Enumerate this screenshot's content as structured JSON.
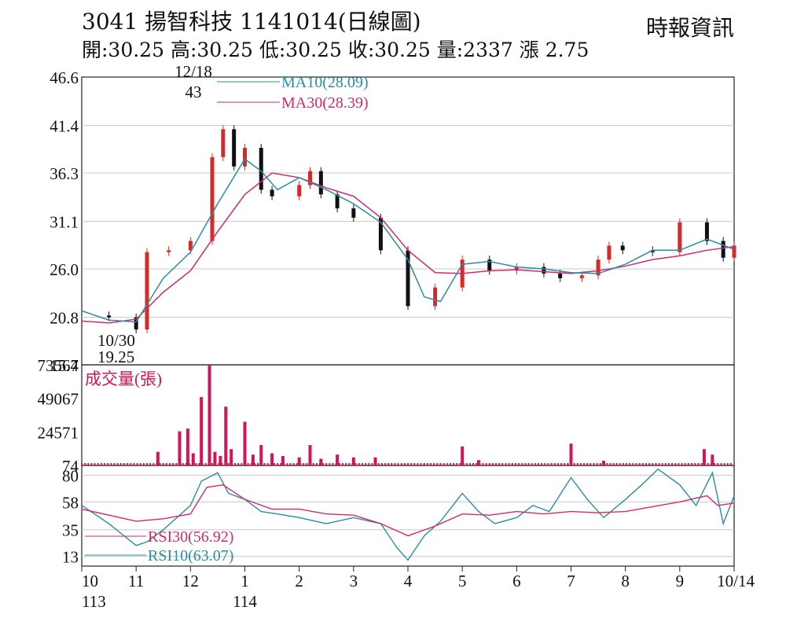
{
  "header": {
    "title": "3041  揚智科技 1141014(日線圖)",
    "stats": "開:30.25 高:30.25 低:30.25 收:30.25 量:2337 漲 2.75",
    "source": "時報資訊"
  },
  "colors": {
    "ma10": "#2a8ca8",
    "ma30": "#d42a6a",
    "up": "#d42a2a",
    "down": "#111111",
    "volume": "#d4145a",
    "grid": "#c8c8c8"
  },
  "chart_data": [
    {
      "type": "candlestick",
      "title": "3041  揚智科技 1141014(日線圖)",
      "y_ticks": [
        "46.6",
        "41.4",
        "36.3",
        "31.1",
        "26.0",
        "20.8",
        "15.7"
      ],
      "ylim": [
        15.7,
        46.6
      ],
      "x_ticks": [
        "10",
        "11",
        "12",
        "1",
        "2",
        "3",
        "4",
        "5",
        "6",
        "7",
        "8",
        "9",
        "10/14"
      ],
      "x_year_labels": [
        "113",
        "114"
      ],
      "annotations": [
        {
          "label": "12/18",
          "value": "43"
        },
        {
          "label": "10/30",
          "value": "19.25"
        }
      ],
      "legend": [
        {
          "name": "MA10",
          "label": "MA10(28.09)",
          "value": 28.09
        },
        {
          "name": "MA30",
          "label": "MA30(28.39)",
          "value": 28.39
        }
      ],
      "series": [
        {
          "name": "price",
          "x": [
            0,
            0.5,
            1,
            1.2,
            1.6,
            2,
            2.4,
            2.6,
            2.8,
            3,
            3.3,
            3.5,
            4,
            4.2,
            4.4,
            4.7,
            5,
            5.5,
            6,
            6.5,
            7,
            7.5,
            8,
            8.5,
            8.8,
            9.2,
            9.5,
            9.7,
            9.95,
            10.5,
            11,
            11.5,
            11.8,
            12
          ],
          "values": [
            21.0,
            20.8,
            19.5,
            27.8,
            28.0,
            29.0,
            38.0,
            41.0,
            37.0,
            39.0,
            34.5,
            33.8,
            35.0,
            36.5,
            34.0,
            32.5,
            31.5,
            28.0,
            22.0,
            24.0,
            27.0,
            25.8,
            26.2,
            25.5,
            25.0,
            25.3,
            27.0,
            28.5,
            28.0,
            27.8,
            31.0,
            29.0,
            27.2,
            28.5
          ]
        },
        {
          "name": "MA10",
          "x": [
            0,
            0.5,
            1,
            1.5,
            2,
            2.5,
            3,
            3.3,
            3.6,
            4,
            4.5,
            5,
            5.5,
            6,
            6.3,
            6.6,
            7,
            7.5,
            8,
            8.5,
            9,
            9.5,
            10,
            10.5,
            11,
            11.5,
            12
          ],
          "values": [
            21.5,
            20.5,
            20.3,
            25.0,
            27.8,
            33.0,
            37.8,
            36.5,
            34.5,
            35.8,
            34.5,
            33.0,
            31.0,
            27.0,
            23.0,
            22.5,
            26.5,
            26.8,
            26.2,
            26.0,
            25.6,
            25.5,
            26.5,
            28.0,
            28.0,
            29.2,
            28.1
          ]
        },
        {
          "name": "MA30",
          "x": [
            0,
            0.5,
            1,
            1.5,
            2,
            2.5,
            3,
            3.5,
            4,
            4.5,
            5,
            5.5,
            6,
            6.5,
            7,
            7.5,
            8,
            8.5,
            9,
            9.5,
            10,
            10.5,
            11,
            11.5,
            12
          ],
          "values": [
            20.4,
            20.2,
            20.6,
            23.5,
            25.8,
            30.0,
            34.0,
            36.3,
            35.8,
            34.7,
            33.8,
            31.5,
            28.0,
            25.6,
            25.5,
            25.8,
            25.9,
            25.7,
            25.5,
            25.8,
            26.3,
            27.0,
            27.4,
            28.0,
            28.4
          ]
        }
      ]
    },
    {
      "type": "bar",
      "title": "成交量(張)",
      "y_ticks": [
        "73564",
        "49067",
        "24571",
        "74"
      ],
      "ylim": [
        74,
        73564
      ],
      "x": [
        1.4,
        1.8,
        1.95,
        2.05,
        2.2,
        2.35,
        2.45,
        2.55,
        2.65,
        2.75,
        3.0,
        3.15,
        3.3,
        3.5,
        3.7,
        4.0,
        4.2,
        4.4,
        4.7,
        5.0,
        5.4,
        7.0,
        7.3,
        9.0,
        9.6,
        11.45,
        11.6
      ],
      "values": [
        10000,
        25000,
        27000,
        9000,
        50000,
        73564,
        10000,
        7000,
        43000,
        12000,
        32000,
        8000,
        15000,
        9000,
        7000,
        6000,
        15000,
        5000,
        8000,
        6000,
        6000,
        14000,
        4000,
        16000,
        3500,
        12000,
        8000
      ]
    },
    {
      "type": "line",
      "title": "RSI",
      "y_ticks": [
        "80",
        "58",
        "35",
        "13"
      ],
      "ylim": [
        5,
        88
      ],
      "legend": [
        {
          "name": "RSI30",
          "label": "RSI30(56.92)",
          "value": 56.92
        },
        {
          "name": "RSI10",
          "label": "RSI10(63.07)",
          "value": 63.07
        }
      ],
      "series": [
        {
          "name": "RSI30",
          "x": [
            0,
            0.5,
            1,
            1.5,
            2,
            2.3,
            2.6,
            3,
            3.5,
            4,
            4.5,
            5,
            5.5,
            6,
            6.5,
            7,
            7.5,
            8,
            8.5,
            9,
            9.5,
            10,
            10.5,
            11,
            11.5,
            11.7,
            12
          ],
          "values": [
            52,
            47,
            42,
            44,
            48,
            70,
            72,
            60,
            52,
            52,
            48,
            47,
            40,
            30,
            38,
            48,
            47,
            50,
            48,
            50,
            49,
            50,
            54,
            58,
            63,
            55,
            57
          ]
        },
        {
          "name": "RSI10",
          "x": [
            0,
            0.5,
            1,
            1.2,
            1.5,
            2,
            2.2,
            2.5,
            2.7,
            3,
            3.3,
            3.6,
            4,
            4.5,
            5,
            5.5,
            5.8,
            6,
            6.3,
            6.6,
            7,
            7.3,
            7.6,
            8,
            8.3,
            8.6,
            9,
            9.3,
            9.6,
            10,
            10.3,
            10.6,
            11,
            11.3,
            11.6,
            11.8,
            12
          ],
          "values": [
            55,
            40,
            22,
            25,
            35,
            55,
            75,
            82,
            65,
            60,
            50,
            48,
            45,
            40,
            45,
            40,
            20,
            10,
            30,
            42,
            65,
            50,
            40,
            45,
            55,
            50,
            78,
            60,
            45,
            60,
            72,
            85,
            72,
            55,
            82,
            40,
            63
          ]
        }
      ]
    }
  ]
}
